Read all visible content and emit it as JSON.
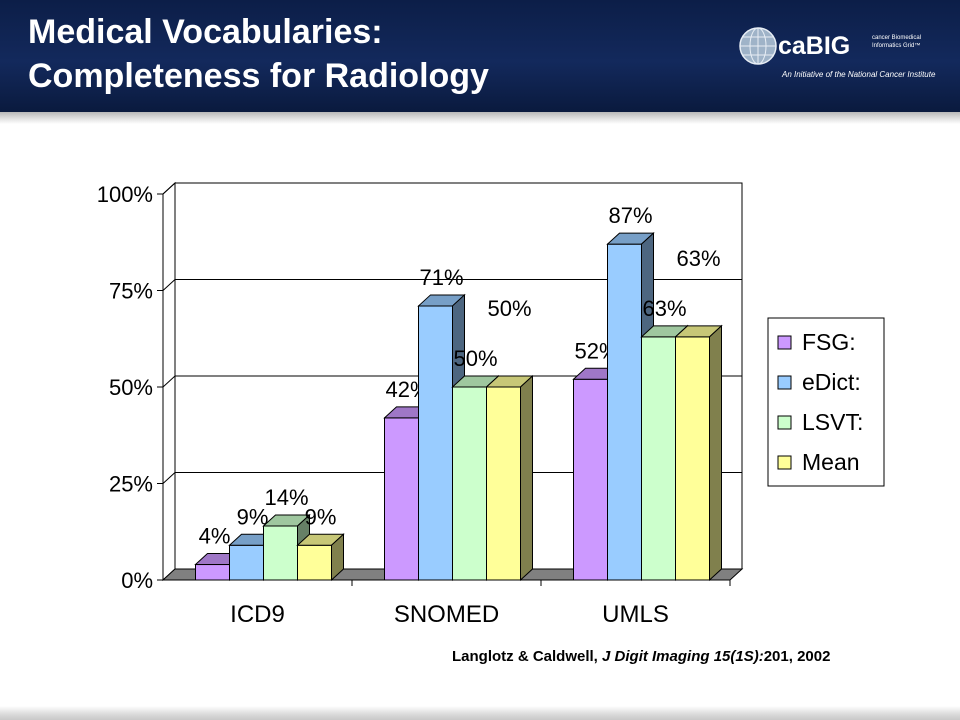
{
  "slide": {
    "title_line1": "Medical Vocabularies:",
    "title_line2": "Completeness for Radiology"
  },
  "logo": {
    "wordmark": "caBIG",
    "subtitle": "cancer Biomedical Informatics Grid™",
    "tagline": "An Initiative of the National Cancer Institute"
  },
  "citation": {
    "authors": "Langlotz & Caldwell,",
    "journal": "J Digit Imaging 15(1S):",
    "pages": "201, 2002"
  },
  "chart_data": {
    "type": "bar",
    "style": "3d-clustered",
    "categories": [
      "ICD9",
      "SNOMED",
      "UMLS"
    ],
    "yticks": [
      "0%",
      "25%",
      "50%",
      "75%",
      "100%"
    ],
    "ylim": [
      0,
      100
    ],
    "grid": true,
    "legend_position": "right",
    "series": [
      {
        "name": "FSG:",
        "values": [
          4,
          42,
          52
        ],
        "labels": [
          "4%",
          "42%",
          "52%"
        ],
        "color": "#cc99ff"
      },
      {
        "name": "eDict:",
        "values": [
          9,
          71,
          87
        ],
        "labels": [
          "9%",
          "71%",
          "87%"
        ],
        "color": "#99ccff"
      },
      {
        "name": "LSVT:",
        "values": [
          14,
          50,
          63
        ],
        "labels": [
          "14%",
          "50%",
          "63%"
        ],
        "color": "#ccffcc"
      },
      {
        "name": "Mean",
        "values": [
          9,
          50,
          63
        ],
        "labels": [
          "9%",
          "50%",
          "63%"
        ],
        "color": "#ffff99"
      }
    ]
  }
}
